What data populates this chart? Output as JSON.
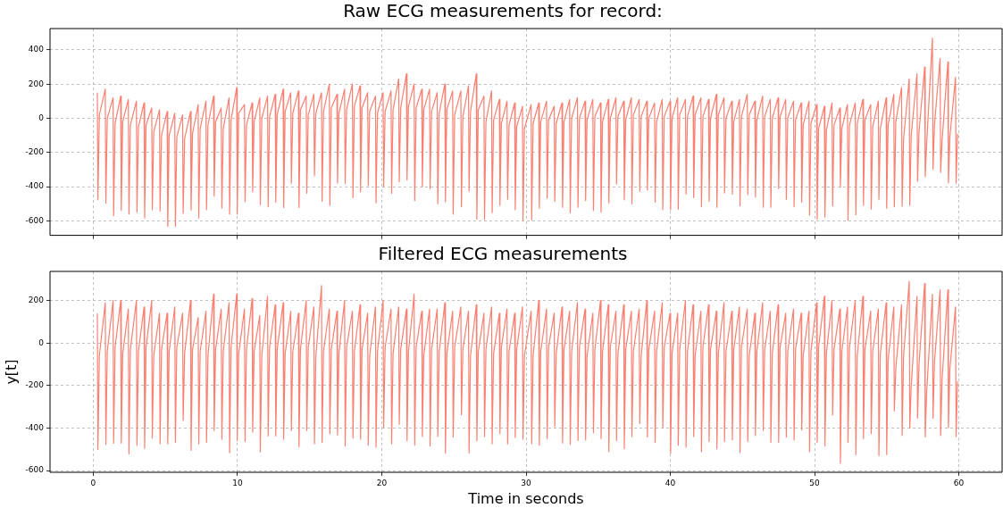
{
  "chart_data": [
    {
      "type": "line",
      "title": "Raw ECG measurements for record:",
      "color": "#fa8072",
      "xlim": [
        -3,
        63
      ],
      "xticks": [
        0,
        10,
        20,
        30,
        40,
        50,
        60
      ],
      "ylim": [
        -685,
        525
      ],
      "yticks": [
        -600,
        -400,
        -200,
        0,
        200,
        400
      ],
      "grid": true,
      "tick_labels": "y",
      "x": [
        0.28,
        0.32,
        0.42,
        0.83,
        0.87,
        0.97,
        1.37,
        1.41,
        1.51,
        1.9,
        1.94,
        2.04,
        2.43,
        2.47,
        2.57,
        2.99,
        3.03,
        3.13,
        3.52,
        3.56,
        3.66,
        4.05,
        4.09,
        4.19,
        4.59,
        4.63,
        4.73,
        5.12,
        5.16,
        5.26,
        5.65,
        5.69,
        5.79,
        6.19,
        6.23,
        6.33,
        6.74,
        6.78,
        6.88,
        7.27,
        7.31,
        7.41,
        7.81,
        7.85,
        7.95,
        8.34,
        8.38,
        8.48,
        8.87,
        8.91,
        9.01,
        9.41,
        9.45,
        9.55,
        9.94,
        9.98,
        10.08,
        10.48,
        10.52,
        10.62,
        11.01,
        11.05,
        11.15,
        11.54,
        11.58,
        11.68,
        12.08,
        12.12,
        12.22,
        12.61,
        12.65,
        12.75,
        13.16,
        13.2,
        13.3,
        13.69,
        13.73,
        13.83,
        14.22,
        14.26,
        14.36,
        14.76,
        14.8,
        14.9,
        15.29,
        15.33,
        15.43,
        15.82,
        15.86,
        15.96,
        16.36,
        16.4,
        16.5,
        16.89,
        16.93,
        17.03,
        17.42,
        17.46,
        17.56,
        17.96,
        18,
        18.1,
        18.49,
        18.53,
        18.63,
        19.02,
        19.06,
        19.16,
        19.56,
        19.6,
        19.7,
        20.09,
        20.13,
        20.23,
        20.64,
        20.68,
        20.78,
        21.17,
        21.21,
        21.31,
        21.71,
        21.75,
        21.85,
        22.24,
        22.28,
        22.38,
        22.77,
        22.81,
        22.91,
        23.31,
        23.35,
        23.45,
        23.84,
        23.88,
        23.98,
        24.37,
        24.41,
        24.51,
        24.91,
        24.95,
        25.05,
        25.48,
        25.52,
        25.62,
        26.01,
        26.05,
        26.15,
        26.55,
        26.59,
        26.69,
        27.08,
        27.12,
        27.22,
        27.61,
        27.65,
        27.75,
        28.15,
        28.19,
        28.29,
        28.68,
        28.72,
        28.82,
        29.21,
        29.25,
        29.35,
        29.75,
        29.79,
        29.89,
        30.35,
        30.39,
        30.49,
        30.88,
        30.92,
        31.02,
        31.42,
        31.46,
        31.56,
        31.95,
        31.99,
        32.09,
        32.49,
        32.53,
        32.63,
        33.02,
        33.06,
        33.16,
        33.56,
        33.6,
        33.7,
        34.09,
        34.13,
        34.23,
        34.63,
        34.67,
        34.77,
        35.16,
        35.2,
        35.3,
        35.7,
        35.74,
        35.84,
        36.23,
        36.27,
        36.37,
        36.77,
        36.81,
        36.91,
        37.3,
        37.34,
        37.44,
        37.84,
        37.88,
        37.98,
        38.37,
        38.41,
        38.51,
        38.91,
        38.95,
        39.05,
        39.44,
        39.48,
        39.58,
        39.98,
        40.02,
        40.12,
        40.51,
        40.55,
        40.65,
        41.05,
        41.09,
        41.19,
        41.58,
        41.62,
        41.72,
        42.12,
        42.16,
        42.26,
        42.65,
        42.69,
        42.79,
        43.19,
        43.23,
        43.33,
        43.72,
        43.76,
        43.86,
        44.26,
        44.3,
        44.4,
        44.79,
        44.83,
        44.93,
        45.33,
        45.37,
        45.47,
        45.86,
        45.9,
        46,
        46.4,
        46.44,
        46.54,
        46.93,
        46.97,
        47.07,
        47.47,
        47.51,
        47.61,
        48,
        48.04,
        48.14,
        48.54,
        48.58,
        48.68,
        49.07,
        49.11,
        49.21,
        49.61,
        49.65,
        49.75,
        50.14,
        50.18,
        50.28,
        50.68,
        50.72,
        50.82,
        51.21,
        51.25,
        51.35,
        51.75,
        51.79,
        51.89,
        52.28,
        52.32,
        52.42,
        52.82,
        52.86,
        52.96,
        53.35,
        53.39,
        53.49,
        53.89,
        53.93,
        54.03,
        54.42,
        54.46,
        54.56,
        54.96,
        55,
        55.1,
        55.49,
        55.53,
        55.63,
        56.03,
        56.07,
        56.17,
        56.56,
        56.6,
        56.7,
        57.1,
        57.14,
        57.24,
        57.63,
        57.67,
        57.77,
        58.17,
        58.21,
        58.31,
        58.7,
        58.74,
        58.84,
        59.24,
        59.28,
        59.38,
        59.77,
        59.81,
        59.91
      ],
      "values": [
        150,
        -477,
        20,
        170,
        -496,
        0,
        120,
        -570,
        -30,
        130,
        -539,
        -20,
        110,
        -560,
        -40,
        100,
        -549,
        -50,
        90,
        -584,
        -40,
        60,
        -535,
        -80,
        50,
        -544,
        -100,
        40,
        -632,
        -100,
        30,
        -632,
        -110,
        20,
        -556,
        -120,
        40,
        -537,
        -90,
        80,
        -584,
        -60,
        100,
        -535,
        -40,
        130,
        -456,
        -20,
        60,
        -526,
        -60,
        120,
        -561,
        -10,
        180,
        -561,
        30,
        80,
        -488,
        -40,
        90,
        -430,
        -20,
        120,
        -505,
        0,
        130,
        -518,
        10,
        140,
        -491,
        20,
        170,
        -523,
        40,
        150,
        -382,
        30,
        160,
        -523,
        50,
        130,
        -439,
        20,
        140,
        -337,
        30,
        150,
        -486,
        40,
        200,
        -509,
        60,
        140,
        -379,
        30,
        170,
        -381,
        50,
        200,
        -465,
        70,
        190,
        -430,
        60,
        150,
        -395,
        40,
        130,
        -495,
        30,
        150,
        -400,
        40,
        160,
        -439,
        50,
        230,
        -372,
        60,
        260,
        -360,
        70,
        200,
        -482,
        60,
        170,
        -400,
        50,
        170,
        -412,
        40,
        150,
        -500,
        30,
        200,
        -488,
        50,
        160,
        -561,
        20,
        160,
        -518,
        10,
        190,
        -426,
        40,
        260,
        -591,
        50,
        130,
        -593,
        -20,
        160,
        -553,
        -10,
        110,
        -509,
        -30,
        100,
        -474,
        -40,
        90,
        -535,
        -50,
        70,
        -596,
        -60,
        80,
        -596,
        -30,
        90,
        -526,
        -20,
        100,
        -468,
        -10,
        70,
        -486,
        -30,
        90,
        -521,
        -20,
        110,
        -553,
        0,
        120,
        -521,
        0,
        100,
        -482,
        -10,
        110,
        -540,
        10,
        90,
        -549,
        -20,
        110,
        -495,
        0,
        120,
        -384,
        10,
        100,
        -477,
        -10,
        120,
        -500,
        20,
        110,
        -426,
        10,
        100,
        -421,
        0,
        90,
        -491,
        -20,
        110,
        -535,
        10,
        100,
        -535,
        0,
        120,
        -532,
        20,
        110,
        -444,
        10,
        130,
        -465,
        20,
        120,
        -518,
        10,
        110,
        -486,
        0,
        140,
        -521,
        20,
        120,
        -437,
        0,
        100,
        -444,
        -20,
        110,
        -512,
        10,
        140,
        -447,
        20,
        100,
        -461,
        -10,
        130,
        -521,
        10,
        110,
        -521,
        0,
        120,
        -412,
        10,
        110,
        -474,
        0,
        100,
        -518,
        -10,
        90,
        -491,
        -40,
        100,
        -567,
        -30,
        80,
        -591,
        -60,
        70,
        -579,
        -70,
        90,
        -514,
        -40,
        60,
        -404,
        -60,
        80,
        -596,
        -40,
        90,
        -565,
        -30,
        110,
        -509,
        -10,
        80,
        -532,
        -50,
        100,
        -474,
        -60,
        120,
        -526,
        -40,
        140,
        -518,
        -20,
        180,
        -514,
        -120,
        230,
        -509,
        -100,
        260,
        -368,
        -80,
        300,
        -342,
        -150,
        470,
        -298,
        -40,
        350,
        -316,
        -130,
        330,
        -377,
        -110,
        240,
        -380,
        -90
      ]
    },
    {
      "type": "line",
      "title": "Filtered ECG measurements",
      "xlabel": "Time in seconds",
      "ylabel": "y[t]",
      "color": "#fa8072",
      "xlim": [
        -3,
        63
      ],
      "xticks": [
        0,
        10,
        20,
        30,
        40,
        50,
        60
      ],
      "ylim": [
        -608,
        337
      ],
      "yticks": [
        -600,
        -400,
        -200,
        0,
        200
      ],
      "grid": true,
      "x": [
        0.28,
        0.32,
        0.42,
        0.83,
        0.87,
        0.97,
        1.37,
        1.41,
        1.51,
        1.9,
        1.94,
        2.04,
        2.43,
        2.47,
        2.57,
        2.99,
        3.03,
        3.13,
        3.52,
        3.56,
        3.66,
        4.05,
        4.09,
        4.19,
        4.59,
        4.63,
        4.73,
        5.12,
        5.16,
        5.26,
        5.65,
        5.69,
        5.79,
        6.19,
        6.23,
        6.33,
        6.74,
        6.78,
        6.88,
        7.27,
        7.31,
        7.41,
        7.81,
        7.85,
        7.95,
        8.34,
        8.38,
        8.48,
        8.87,
        8.91,
        9.01,
        9.41,
        9.45,
        9.55,
        9.94,
        9.98,
        10.08,
        10.48,
        10.52,
        10.62,
        11.01,
        11.05,
        11.15,
        11.54,
        11.58,
        11.68,
        12.08,
        12.12,
        12.22,
        12.61,
        12.65,
        12.75,
        13.16,
        13.2,
        13.3,
        13.69,
        13.73,
        13.83,
        14.22,
        14.26,
        14.36,
        14.76,
        14.8,
        14.9,
        15.29,
        15.33,
        15.43,
        15.82,
        15.86,
        15.96,
        16.36,
        16.4,
        16.5,
        16.89,
        16.93,
        17.03,
        17.42,
        17.46,
        17.56,
        17.96,
        18,
        18.1,
        18.49,
        18.53,
        18.63,
        19.02,
        19.06,
        19.16,
        19.56,
        19.6,
        19.7,
        20.09,
        20.13,
        20.23,
        20.64,
        20.68,
        20.78,
        21.17,
        21.21,
        21.31,
        21.71,
        21.75,
        21.85,
        22.24,
        22.28,
        22.38,
        22.77,
        22.81,
        22.91,
        23.31,
        23.35,
        23.45,
        23.84,
        23.88,
        23.98,
        24.37,
        24.41,
        24.51,
        24.91,
        24.95,
        25.05,
        25.48,
        25.52,
        25.62,
        26.01,
        26.05,
        26.15,
        26.55,
        26.59,
        26.69,
        27.08,
        27.12,
        27.22,
        27.61,
        27.65,
        27.75,
        28.15,
        28.19,
        28.29,
        28.68,
        28.72,
        28.82,
        29.21,
        29.25,
        29.35,
        29.75,
        29.79,
        29.89,
        30.35,
        30.39,
        30.49,
        30.88,
        30.92,
        31.02,
        31.42,
        31.46,
        31.56,
        31.95,
        31.99,
        32.09,
        32.49,
        32.53,
        32.63,
        33.02,
        33.06,
        33.16,
        33.56,
        33.6,
        33.7,
        34.09,
        34.13,
        34.23,
        34.63,
        34.67,
        34.77,
        35.16,
        35.2,
        35.3,
        35.7,
        35.74,
        35.84,
        36.23,
        36.27,
        36.37,
        36.77,
        36.81,
        36.91,
        37.3,
        37.34,
        37.44,
        37.84,
        37.88,
        37.98,
        38.37,
        38.41,
        38.51,
        38.91,
        38.95,
        39.05,
        39.44,
        39.48,
        39.58,
        39.98,
        40.02,
        40.12,
        40.51,
        40.55,
        40.65,
        41.05,
        41.09,
        41.19,
        41.58,
        41.62,
        41.72,
        42.12,
        42.16,
        42.26,
        42.65,
        42.69,
        42.79,
        43.19,
        43.23,
        43.33,
        43.72,
        43.76,
        43.86,
        44.26,
        44.3,
        44.4,
        44.79,
        44.83,
        44.93,
        45.33,
        45.37,
        45.47,
        45.86,
        45.9,
        46,
        46.4,
        46.44,
        46.54,
        46.93,
        46.97,
        47.07,
        47.47,
        47.51,
        47.61,
        48,
        48.04,
        48.14,
        48.54,
        48.58,
        48.68,
        49.07,
        49.11,
        49.21,
        49.61,
        49.65,
        49.75,
        50.14,
        50.18,
        50.28,
        50.68,
        50.72,
        50.82,
        51.21,
        51.25,
        51.35,
        51.75,
        51.79,
        51.89,
        52.28,
        52.32,
        52.42,
        52.82,
        52.86,
        52.96,
        53.35,
        53.39,
        53.49,
        53.89,
        53.93,
        54.03,
        54.42,
        54.46,
        54.56,
        54.96,
        55,
        55.1,
        55.49,
        55.53,
        55.63,
        56.03,
        56.07,
        56.17,
        56.56,
        56.6,
        56.7,
        57.1,
        57.14,
        57.24,
        57.63,
        57.67,
        57.77,
        58.17,
        58.21,
        58.31,
        58.7,
        58.74,
        58.84,
        59.24,
        59.28,
        59.38,
        59.77,
        59.81,
        59.91
      ],
      "values": [
        140,
        -501,
        -60,
        190,
        -477,
        -40,
        200,
        -471,
        -20,
        200,
        -471,
        -50,
        160,
        -522,
        -30,
        200,
        -481,
        -40,
        170,
        -495,
        -20,
        200,
        -447,
        -60,
        140,
        -474,
        -30,
        140,
        -474,
        -40,
        170,
        -467,
        -20,
        140,
        -364,
        -50,
        200,
        -505,
        -30,
        120,
        -474,
        -40,
        150,
        -467,
        -60,
        230,
        -412,
        -30,
        160,
        -453,
        -40,
        190,
        -516,
        -20,
        230,
        -460,
        -50,
        160,
        -463,
        -30,
        210,
        -419,
        -40,
        130,
        -512,
        -60,
        220,
        -437,
        -20,
        180,
        -437,
        -30,
        190,
        -453,
        -50,
        150,
        -412,
        -40,
        140,
        -488,
        -30,
        200,
        -412,
        -20,
        170,
        -474,
        -60,
        270,
        -467,
        -40,
        160,
        -426,
        -30,
        150,
        -433,
        -50,
        200,
        -484,
        -20,
        150,
        -447,
        -40,
        180,
        -453,
        -30,
        140,
        -481,
        -60,
        170,
        -490,
        -40,
        200,
        -396,
        -20,
        160,
        -474,
        -50,
        170,
        -382,
        -30,
        160,
        -460,
        -40,
        230,
        -481,
        -20,
        150,
        -440,
        -60,
        160,
        -484,
        -30,
        160,
        -440,
        -40,
        190,
        -518,
        -50,
        150,
        -442,
        -20,
        170,
        -337,
        -30,
        150,
        -518,
        -60,
        180,
        -460,
        -40,
        140,
        -440,
        -30,
        170,
        -474,
        -50,
        140,
        -426,
        -20,
        160,
        -475,
        -40,
        140,
        -444,
        -30,
        170,
        -453,
        -60,
        150,
        -474,
        -60,
        200,
        -481,
        -40,
        160,
        -449,
        -20,
        140,
        -394,
        -50,
        170,
        -470,
        -30,
        150,
        -477,
        -40,
        190,
        -459,
        -20,
        160,
        -456,
        -60,
        140,
        -422,
        -30,
        200,
        -449,
        -40,
        180,
        -511,
        -20,
        150,
        -459,
        -50,
        180,
        -497,
        -30,
        150,
        -440,
        -40,
        160,
        -379,
        -60,
        200,
        -442,
        -30,
        150,
        -467,
        -40,
        190,
        -398,
        -20,
        140,
        -519,
        -50,
        140,
        -481,
        -30,
        200,
        -490,
        -40,
        180,
        -440,
        -60,
        150,
        -511,
        -20,
        180,
        -463,
        -30,
        150,
        -497,
        -50,
        190,
        -463,
        -40,
        150,
        -456,
        -30,
        170,
        -515,
        -20,
        160,
        -463,
        -60,
        140,
        -435,
        -40,
        190,
        -412,
        -30,
        150,
        -467,
        -50,
        180,
        -467,
        -20,
        140,
        -442,
        -40,
        160,
        -456,
        -30,
        140,
        -408,
        -60,
        150,
        -511,
        -40,
        190,
        -467,
        -20,
        220,
        -484,
        -50,
        200,
        -339,
        -30,
        160,
        -566,
        -40,
        170,
        -467,
        -20,
        200,
        -525,
        -60,
        220,
        -449,
        -30,
        150,
        -426,
        -40,
        160,
        -529,
        -50,
        190,
        -525,
        -80,
        170,
        -319,
        -120,
        180,
        -435,
        -60,
        290,
        -401,
        -200,
        220,
        -353,
        -100,
        280,
        -442,
        -230,
        230,
        -353,
        -90,
        250,
        -435,
        -170,
        250,
        -398,
        -120,
        170,
        -440,
        -180
      ]
    }
  ]
}
